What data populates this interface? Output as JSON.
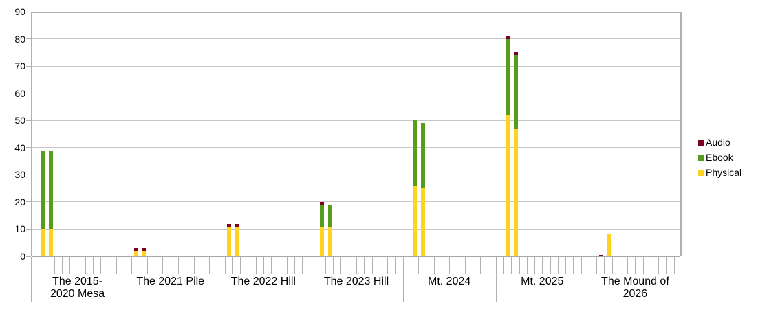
{
  "chart_data": {
    "type": "bar",
    "stacked": true,
    "orientation": "vertical",
    "title": "",
    "xlabel": "",
    "ylabel": "",
    "ylim": [
      0,
      90
    ],
    "yticks": [
      0,
      10,
      20,
      30,
      40,
      50,
      60,
      70,
      80,
      90
    ],
    "grid": "horizontal",
    "slots_per_category": 12,
    "bars_per_category": 2,
    "bar_slot_indices": [
      1,
      2
    ],
    "categories": [
      {
        "label": "The 2015-2020 Mesa",
        "lines": [
          "The 2015-",
          "2020 Mesa"
        ]
      },
      {
        "label": "The 2021 Pile",
        "lines": [
          "The 2021 Pile"
        ]
      },
      {
        "label": "The 2022 Hill",
        "lines": [
          "The 2022 Hill"
        ]
      },
      {
        "label": "The 2023 Hill",
        "lines": [
          "The 2023 Hill"
        ]
      },
      {
        "label": "Mt. 2024",
        "lines": [
          "Mt. 2024"
        ]
      },
      {
        "label": "Mt. 2025",
        "lines": [
          "Mt. 2025"
        ]
      },
      {
        "label": "The Mound of 2026",
        "lines": [
          "The Mound of",
          "2026"
        ]
      }
    ],
    "series": [
      {
        "name": "Physical",
        "color": "#FFD320",
        "values": [
          [
            10,
            10
          ],
          [
            2,
            2
          ],
          [
            11,
            11
          ],
          [
            11,
            11
          ],
          [
            26,
            25
          ],
          [
            52,
            47
          ],
          [
            0,
            8
          ]
        ]
      },
      {
        "name": "Ebook",
        "color": "#579D1C",
        "values": [
          [
            29,
            29
          ],
          [
            0,
            0
          ],
          [
            0,
            0
          ],
          [
            8,
            8
          ],
          [
            24,
            24
          ],
          [
            28,
            27
          ],
          [
            0,
            0
          ]
        ]
      },
      {
        "name": "Audio",
        "color": "#7E0021",
        "values": [
          [
            0,
            0
          ],
          [
            1,
            1
          ],
          [
            1,
            1
          ],
          [
            1,
            0
          ],
          [
            0,
            0
          ],
          [
            1,
            1
          ],
          [
            0.5,
            0
          ]
        ]
      }
    ],
    "totals": [
      [
        39,
        39
      ],
      [
        3,
        3
      ],
      [
        12,
        12
      ],
      [
        20,
        19
      ],
      [
        50,
        49
      ],
      [
        81,
        75
      ],
      [
        0.5,
        8
      ]
    ],
    "legend": {
      "position": "right",
      "entries": [
        {
          "label": "Audio",
          "color": "#7E0021"
        },
        {
          "label": "Ebook",
          "color": "#579D1C"
        },
        {
          "label": "Physical",
          "color": "#FFD320"
        }
      ]
    },
    "colors": {
      "background": "#ffffff",
      "gridline": "#c8c8c8",
      "axis": "#b0b0b0",
      "text": "#000000"
    }
  }
}
